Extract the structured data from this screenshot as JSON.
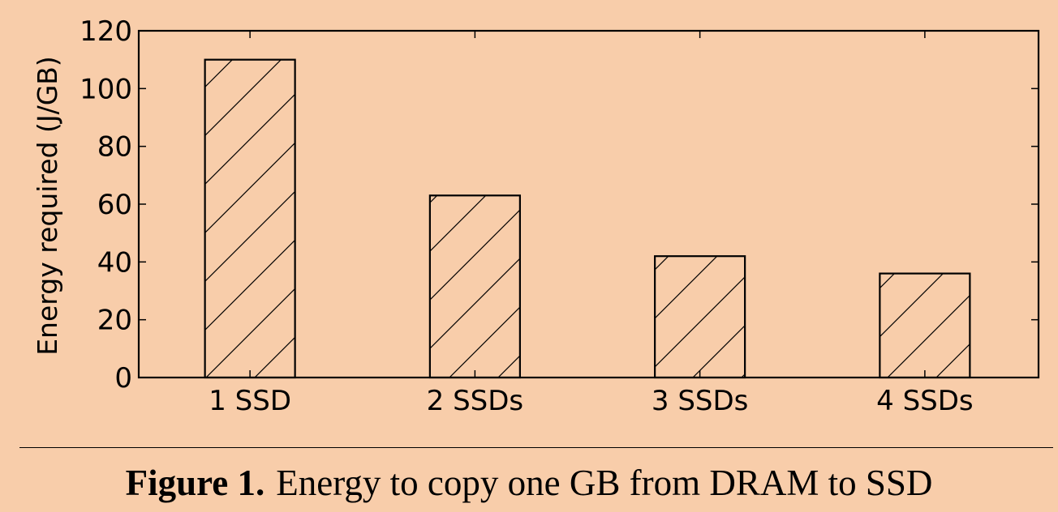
{
  "chart_data": {
    "type": "bar",
    "categories": [
      "1 SSD",
      "2 SSDs",
      "3 SSDs",
      "4 SSDs"
    ],
    "values": [
      110,
      63,
      42,
      36
    ],
    "ylabel": "Energy required (J/GB)",
    "xlabel": "",
    "ylim": [
      0,
      120
    ],
    "yticks": [
      0,
      20,
      40,
      60,
      80,
      100,
      120
    ],
    "bar_pattern": "diagonal hatch",
    "bar_fill": "none",
    "grid": false,
    "legend": "none"
  },
  "caption": {
    "label": "Figure 1.",
    "text": "Energy to copy one GB from DRAM to SSD"
  },
  "colors": {
    "background": "#f8cdaa",
    "ink": "#000000"
  }
}
